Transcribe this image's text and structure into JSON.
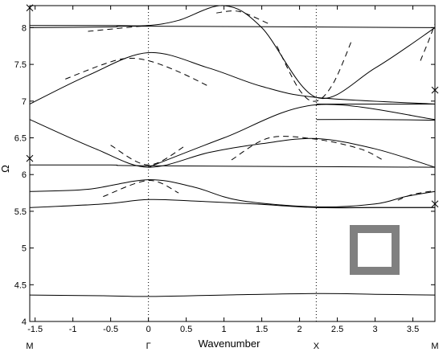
{
  "chart_data": {
    "type": "line",
    "title": "",
    "xlabel": "Wavenumber",
    "ylabel": "Ω",
    "xlim": [
      -1.571,
      3.792
    ],
    "ylim": [
      4.0,
      8.3
    ],
    "grid": false,
    "x_ticks": [
      -1.5,
      -1,
      -0.5,
      0,
      0.5,
      1,
      1.5,
      2,
      2.5,
      3,
      3.5
    ],
    "x_tick_labels": [
      "-1.5",
      "-1",
      "-0.5",
      "0",
      "0.5",
      "1",
      "1.5",
      "2",
      "2.5",
      "3",
      "3.5"
    ],
    "y_ticks": [
      4,
      4.5,
      5,
      5.5,
      6,
      6.5,
      7,
      7.5,
      8
    ],
    "y_tick_labels": [
      "4",
      "4.5",
      "5",
      "5.5",
      "6",
      "6.5",
      "7",
      "7.5",
      "8"
    ],
    "symmetry_points": [
      {
        "label": "M",
        "x": -1.571
      },
      {
        "label": "Γ",
        "x": 0
      },
      {
        "label": "X",
        "x": 2.221
      },
      {
        "label": "M",
        "x": 3.792
      }
    ],
    "vertical_reference_lines_x": [
      0,
      2.221
    ],
    "series": [
      {
        "style": "solid",
        "x": [
          -1.571,
          -0.6,
          0,
          1.0,
          2.221,
          3.0,
          3.792
        ],
        "y": [
          4.36,
          4.35,
          4.34,
          4.36,
          4.38,
          4.37,
          4.36
        ]
      },
      {
        "style": "solid",
        "x": [
          -1.571,
          -0.6,
          0,
          0.6,
          1.4,
          2.221,
          3.0,
          3.792
        ],
        "y": [
          5.55,
          5.6,
          5.66,
          5.64,
          5.6,
          5.55,
          5.55,
          5.55
        ]
      },
      {
        "style": "solid",
        "x": [
          -1.571,
          -0.8,
          0,
          0.6,
          1.2,
          2.221,
          3.0,
          3.4,
          3.792
        ],
        "y": [
          5.77,
          5.8,
          5.93,
          5.83,
          5.65,
          5.56,
          5.6,
          5.7,
          5.77
        ]
      },
      {
        "style": "solid",
        "x": [
          -1.571,
          -0.5,
          0,
          3.792
        ],
        "y": [
          6.13,
          6.13,
          6.12,
          6.1
        ]
      },
      {
        "style": "solid",
        "x": [
          -1.571,
          -0.7,
          0,
          0.8,
          1.5,
          2.221,
          3.0,
          3.792
        ],
        "y": [
          6.75,
          6.35,
          6.1,
          6.3,
          6.42,
          6.49,
          6.35,
          6.1
        ]
      },
      {
        "style": "solid",
        "x": [
          0,
          1.0,
          2.221,
          3.792
        ],
        "y": [
          6.1,
          6.5,
          6.95,
          6.75
        ]
      },
      {
        "style": "solid",
        "x": [
          -1.571,
          -0.8,
          0,
          0.8,
          1.5,
          2.221,
          3.792
        ],
        "y": [
          6.96,
          7.35,
          7.66,
          7.45,
          7.2,
          7.05,
          6.96
        ]
      },
      {
        "style": "solid",
        "x": [
          -1.571,
          -0.5,
          0,
          3.792
        ],
        "y": [
          8.0,
          8.01,
          8.02,
          8.0
        ]
      },
      {
        "style": "solid",
        "x": [
          -1.571,
          -0.5,
          0,
          0.4,
          1.0,
          1.5,
          2.221,
          3.0,
          3.792
        ],
        "y": [
          8.03,
          8.03,
          8.03,
          8.1,
          8.3,
          8.0,
          7.05,
          7.45,
          8.0
        ]
      },
      {
        "style": "solid",
        "x": [
          2.221,
          3.0,
          3.792
        ],
        "y": [
          6.96,
          6.96,
          6.96
        ]
      },
      {
        "style": "solid",
        "x": [
          2.221,
          3.0,
          3.792
        ],
        "y": [
          6.75,
          6.75,
          6.74
        ]
      },
      {
        "style": "solid",
        "x": [
          2.221,
          3.0,
          3.792
        ],
        "y": [
          5.55,
          5.55,
          5.55
        ]
      },
      {
        "style": "dashed",
        "x": [
          -1.1,
          -0.6,
          -0.3,
          0,
          0.4,
          0.8
        ],
        "y": [
          7.3,
          7.5,
          7.58,
          7.55,
          7.4,
          7.2
        ]
      },
      {
        "style": "dashed",
        "x": [
          1.7,
          2.0,
          2.221,
          2.45,
          2.7
        ],
        "y": [
          7.75,
          7.15,
          7.0,
          7.25,
          7.85
        ]
      },
      {
        "style": "dashed",
        "x": [
          -0.5,
          0,
          0.5
        ],
        "y": [
          6.4,
          6.13,
          6.4
        ]
      },
      {
        "style": "dashed",
        "x": [
          1.1,
          1.6,
          2.221,
          2.8,
          3.1
        ],
        "y": [
          6.2,
          6.5,
          6.48,
          6.35,
          6.2
        ]
      },
      {
        "style": "dashed",
        "x": [
          -0.6,
          0,
          0.4
        ],
        "y": [
          5.7,
          5.92,
          5.75
        ]
      },
      {
        "style": "dashed",
        "x": [
          0.9,
          1.2,
          1.6
        ],
        "y": [
          8.2,
          8.22,
          8.05
        ]
      },
      {
        "style": "dashed",
        "x": [
          -0.8,
          -0.3,
          0
        ],
        "y": [
          7.95,
          8.0,
          8.03
        ]
      },
      {
        "style": "dashed",
        "x": [
          3.6,
          3.7,
          3.792
        ],
        "y": [
          7.55,
          7.8,
          8.05
        ]
      },
      {
        "style": "dashed",
        "x": [
          3.3,
          3.5,
          3.792
        ],
        "y": [
          5.65,
          5.73,
          5.78
        ]
      }
    ],
    "markers": [
      {
        "symbol": "x",
        "x": -1.571,
        "y": 8.27
      },
      {
        "symbol": "x",
        "x": -1.571,
        "y": 6.22
      },
      {
        "symbol": "x",
        "x": 3.792,
        "y": 7.15
      },
      {
        "symbol": "x",
        "x": 3.792,
        "y": 5.6
      }
    ],
    "inset": {
      "shape": "square-frame",
      "color": "#808080"
    }
  }
}
